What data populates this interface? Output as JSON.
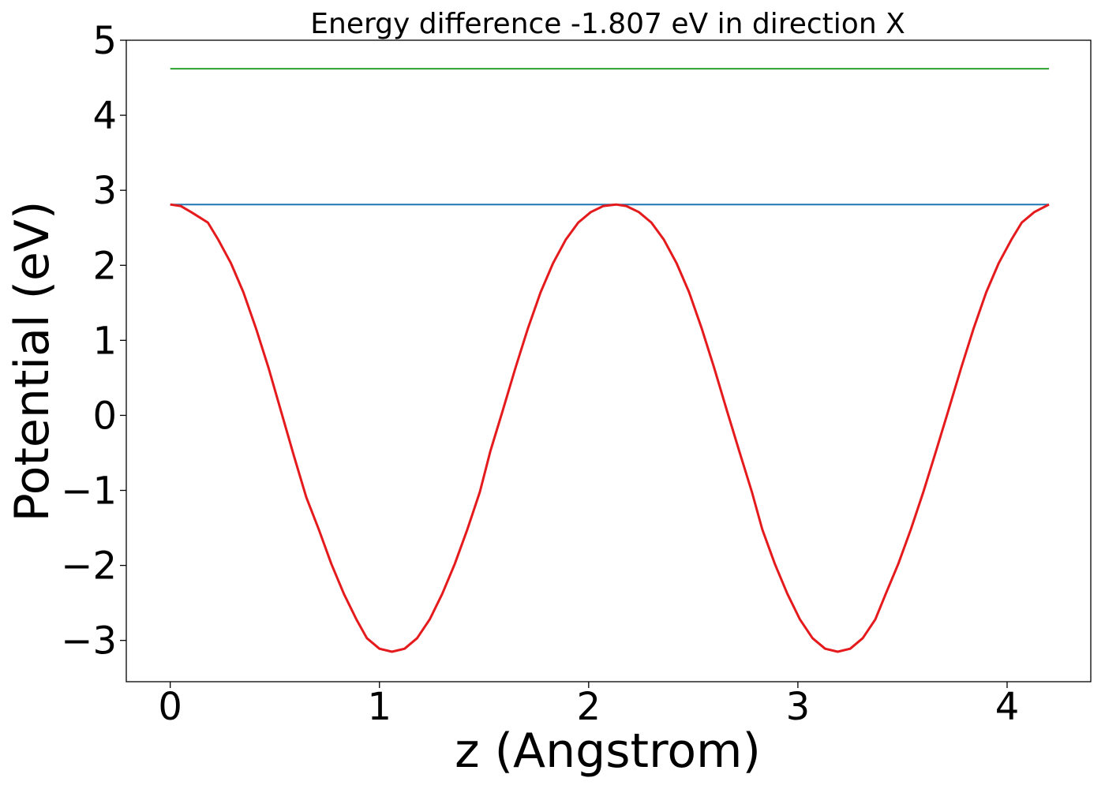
{
  "chart_data": {
    "type": "line",
    "title": "Energy difference -1.807 eV in direction X",
    "xlabel": "z (Angstrom)",
    "ylabel": "Potential (eV)",
    "xlim": [
      -0.21,
      4.4
    ],
    "ylim": [
      -3.55,
      5.0
    ],
    "x_ticks": [
      0,
      1,
      2,
      3,
      4
    ],
    "x_tick_labels": [
      "0",
      "1",
      "2",
      "3",
      "4"
    ],
    "y_ticks": [
      5,
      4,
      3,
      2,
      1,
      0,
      -1,
      -2,
      -3
    ],
    "y_tick_labels": [
      "5",
      "4",
      "3",
      "2",
      "1",
      "0",
      "−1",
      "−2",
      "−3"
    ],
    "grid": false,
    "series": [
      {
        "color": "#2ca02c",
        "style": "line",
        "x": [
          0,
          4.2
        ],
        "y": [
          4.62,
          4.62
        ]
      },
      {
        "color": "#1f77b4",
        "style": "line",
        "x": [
          0,
          4.2
        ],
        "y": [
          2.81,
          2.81
        ]
      },
      {
        "color": "#e41a1c",
        "style": "line",
        "x": [
          0,
          0.05,
          0.1,
          0.18,
          0.23,
          0.29,
          0.35,
          0.41,
          0.47,
          0.53,
          0.59,
          0.65,
          0.71,
          0.77,
          0.83,
          0.89,
          0.94,
          1.0,
          1.06,
          1.12,
          1.18,
          1.24,
          1.3,
          1.36,
          1.42,
          1.48,
          1.53,
          1.59,
          1.65,
          1.71,
          1.77,
          1.83,
          1.89,
          1.95,
          2.01,
          2.07,
          2.13,
          2.18,
          2.24,
          2.3,
          2.36,
          2.42,
          2.48,
          2.54,
          2.6,
          2.66,
          2.72,
          2.78,
          2.83,
          2.89,
          2.95,
          3.01,
          3.07,
          3.13,
          3.19,
          3.25,
          3.31,
          3.37,
          3.42,
          3.48,
          3.54,
          3.6,
          3.66,
          3.72,
          3.78,
          3.84,
          3.9,
          3.96,
          4.02,
          4.07,
          4.13,
          4.2
        ],
        "y": [
          2.81,
          2.79,
          2.71,
          2.57,
          2.34,
          2.03,
          1.64,
          1.16,
          0.63,
          0.05,
          -0.53,
          -1.09,
          -1.52,
          -1.98,
          -2.38,
          -2.72,
          -2.97,
          -3.11,
          -3.15,
          -3.11,
          -2.97,
          -2.72,
          -2.38,
          -1.98,
          -1.52,
          -1.02,
          -0.48,
          0.07,
          0.63,
          1.16,
          1.64,
          2.03,
          2.34,
          2.57,
          2.71,
          2.79,
          2.81,
          2.79,
          2.71,
          2.57,
          2.34,
          2.03,
          1.64,
          1.16,
          0.63,
          0.07,
          -0.48,
          -1.02,
          -1.52,
          -1.98,
          -2.38,
          -2.72,
          -2.97,
          -3.11,
          -3.15,
          -3.11,
          -2.97,
          -2.72,
          -2.38,
          -1.98,
          -1.52,
          -1.02,
          -0.48,
          0.07,
          0.63,
          1.16,
          1.64,
          2.03,
          2.34,
          2.57,
          2.71,
          2.81
        ]
      }
    ]
  }
}
